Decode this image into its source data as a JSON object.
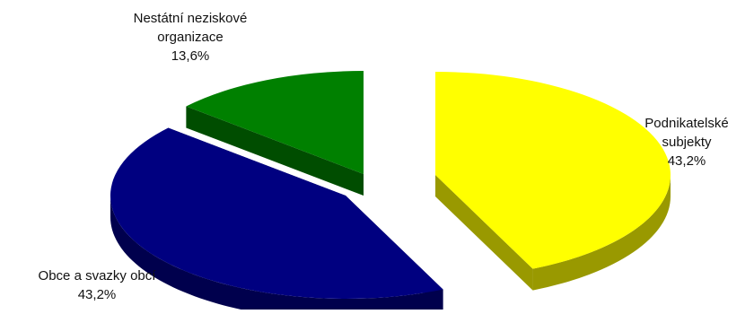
{
  "chart_data": {
    "type": "pie",
    "three_d": true,
    "exploded": true,
    "legend": "none",
    "slices": [
      {
        "label_lines": [
          "Podnikatelské",
          "subjekty"
        ],
        "percent_label": "43,2%",
        "value": 43.2,
        "color": "#ffff00",
        "side_color": "#999900"
      },
      {
        "label_lines": [
          "Obce a svazky obcí"
        ],
        "percent_label": "43,2%",
        "value": 43.2,
        "color": "#000080",
        "side_color": "#00004d"
      },
      {
        "label_lines": [
          "Nestátní neziskové",
          "organizace"
        ],
        "percent_label": "13,6%",
        "value": 13.6,
        "color": "#008000",
        "side_color": "#004d00"
      }
    ]
  }
}
